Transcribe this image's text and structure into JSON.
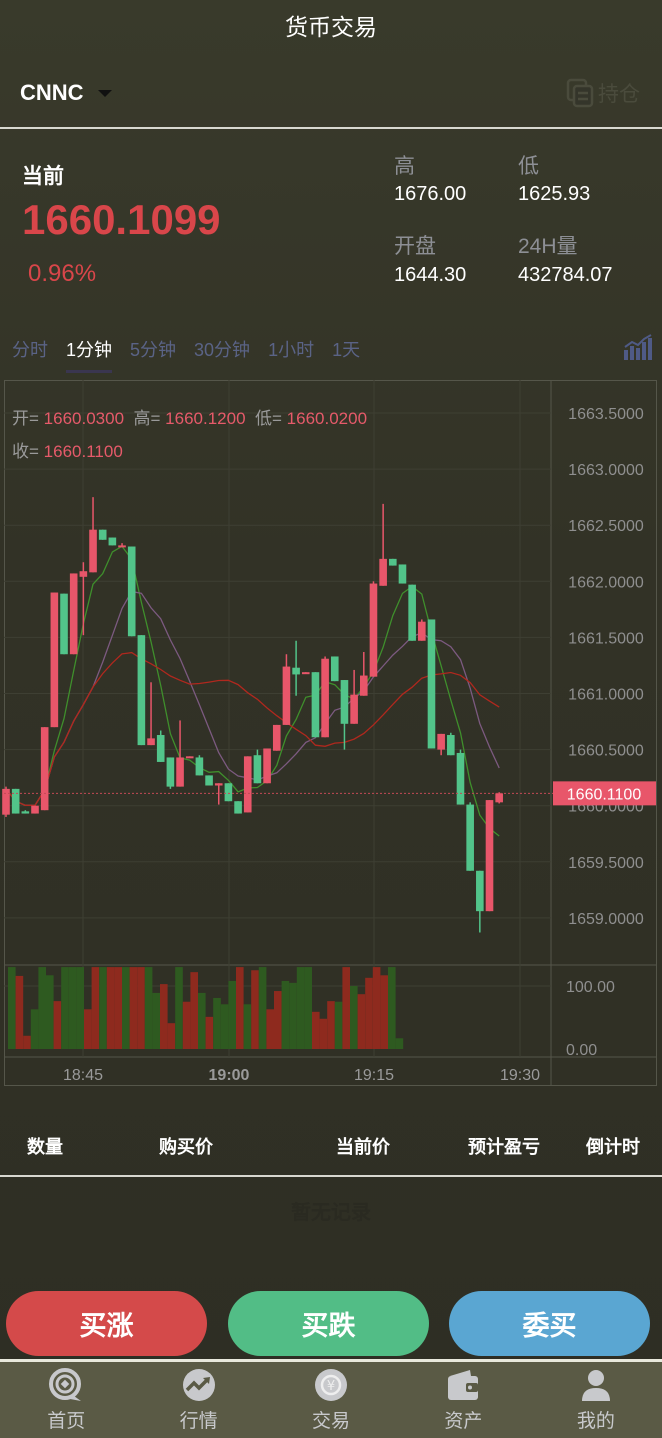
{
  "header": {
    "title": "货币交易",
    "symbol": "CNNC",
    "hold_label": "持仓"
  },
  "quote": {
    "current_label": "当前",
    "price": "1660.1099",
    "change_pct": "0.96%",
    "high_label": "高",
    "high": "1676.00",
    "low_label": "低",
    "low": "1625.93",
    "open_label": "开盘",
    "open": "1644.30",
    "vol_label": "24H量",
    "vol": "432784.07"
  },
  "tabs": [
    {
      "label": "分时"
    },
    {
      "label": "1分钟",
      "active": true
    },
    {
      "label": "5分钟"
    },
    {
      "label": "30分钟"
    },
    {
      "label": "1小时"
    },
    {
      "label": "1天"
    }
  ],
  "ohlc_info": {
    "open_label": "开=",
    "open": "1660.0300",
    "high_label": "高=",
    "high": "1660.1200",
    "low_label": "低=",
    "low": "1660.0200",
    "close_label": "收=",
    "close": "1660.1100"
  },
  "colors": {
    "up": "#e8566a",
    "down": "#52c48a",
    "vol_up": "#8e2a1e",
    "vol_down": "#2e5a20",
    "ma5": "#3f8f2c",
    "ma10": "#7c5a80",
    "ma20": "#b0281e",
    "buy_up": "#d44a4a",
    "buy_down": "#52bd86",
    "entrust": "#5aa6d2"
  },
  "chart_data": {
    "type": "candlestick",
    "price_ticks": [
      "1663.5000",
      "1663.0000",
      "1662.5000",
      "1662.0000",
      "1661.5000",
      "1661.0000",
      "1660.5000",
      "1660.0000",
      "1659.5000",
      "1659.0000"
    ],
    "ylim": [
      1658.8,
      1663.8
    ],
    "current_price_label": "1660.1100",
    "current_price": 1660.11,
    "volume_ticks": [
      "100.00",
      "0.00"
    ],
    "time_ticks": [
      "18:45",
      "19:00",
      "19:15",
      "19:30"
    ],
    "candles": [
      [
        1659.92,
        1660.17,
        1659.9,
        1660.15
      ],
      [
        1660.15,
        1660.15,
        1659.93,
        1659.93
      ],
      [
        1659.95,
        1659.96,
        1659.93,
        1659.93
      ],
      [
        1659.93,
        1660.0,
        1659.93,
        1660.0
      ],
      [
        1659.96,
        1660.7,
        1659.96,
        1660.7
      ],
      [
        1660.7,
        1661.9,
        1660.7,
        1661.9
      ],
      [
        1661.89,
        1661.89,
        1661.35,
        1661.35
      ],
      [
        1661.35,
        1662.07,
        1661.35,
        1662.07
      ],
      [
        1662.04,
        1662.17,
        1661.52,
        1662.09
      ],
      [
        1662.08,
        1662.75,
        1662.08,
        1662.46
      ],
      [
        1662.46,
        1662.46,
        1662.37,
        1662.37
      ],
      [
        1662.39,
        1662.39,
        1662.32,
        1662.32
      ],
      [
        1662.31,
        1662.34,
        1662.31,
        1662.32
      ],
      [
        1662.31,
        1662.31,
        1661.51,
        1661.51
      ],
      [
        1661.52,
        1661.52,
        1660.54,
        1660.54
      ],
      [
        1660.54,
        1661.1,
        1660.54,
        1660.6
      ],
      [
        1660.63,
        1660.67,
        1660.39,
        1660.39
      ],
      [
        1660.43,
        1660.43,
        1660.15,
        1660.17
      ],
      [
        1660.17,
        1660.76,
        1660.17,
        1660.43
      ],
      [
        1660.43,
        1660.44,
        1660.43,
        1660.44
      ],
      [
        1660.43,
        1660.45,
        1660.27,
        1660.27
      ],
      [
        1660.27,
        1660.27,
        1660.18,
        1660.18
      ],
      [
        1660.18,
        1660.2,
        1660.01,
        1660.2
      ],
      [
        1660.2,
        1660.2,
        1660.04,
        1660.04
      ],
      [
        1660.04,
        1660.04,
        1659.93,
        1659.93
      ],
      [
        1659.94,
        1660.44,
        1659.94,
        1660.44
      ],
      [
        1660.45,
        1660.5,
        1660.2,
        1660.2
      ],
      [
        1660.2,
        1660.51,
        1660.2,
        1660.51
      ],
      [
        1660.49,
        1660.72,
        1660.49,
        1660.72
      ],
      [
        1660.72,
        1661.35,
        1660.72,
        1661.24
      ],
      [
        1661.23,
        1661.47,
        1660.98,
        1661.17
      ],
      [
        1661.18,
        1661.19,
        1661.18,
        1661.19
      ],
      [
        1661.19,
        1661.19,
        1660.61,
        1660.61
      ],
      [
        1660.61,
        1661.33,
        1660.61,
        1661.31
      ],
      [
        1661.33,
        1661.33,
        1661.11,
        1661.11
      ],
      [
        1661.12,
        1661.12,
        1660.5,
        1660.73
      ],
      [
        1660.73,
        1661.21,
        1660.73,
        1660.99
      ],
      [
        1660.98,
        1661.37,
        1660.98,
        1661.16
      ],
      [
        1661.15,
        1662.0,
        1661.15,
        1661.98
      ],
      [
        1661.96,
        1662.69,
        1661.96,
        1662.2
      ],
      [
        1662.2,
        1662.2,
        1662.14,
        1662.14
      ],
      [
        1662.15,
        1662.15,
        1661.98,
        1661.98
      ],
      [
        1661.97,
        1661.97,
        1661.47,
        1661.47
      ],
      [
        1661.47,
        1661.66,
        1661.47,
        1661.64
      ],
      [
        1661.66,
        1661.66,
        1660.51,
        1660.51
      ],
      [
        1660.5,
        1660.64,
        1660.45,
        1660.64
      ],
      [
        1660.63,
        1660.65,
        1660.45,
        1660.45
      ],
      [
        1660.47,
        1660.5,
        1660.01,
        1660.01
      ],
      [
        1660.01,
        1660.03,
        1659.42,
        1659.42
      ],
      [
        1659.42,
        1659.42,
        1658.87,
        1659.06
      ],
      [
        1659.06,
        1660.05,
        1659.06,
        1660.05
      ],
      [
        1660.03,
        1660.12,
        1660.02,
        1660.11
      ]
    ],
    "volumes": [
      [
        130,
        "down"
      ],
      [
        116,
        "up"
      ],
      [
        21,
        "up"
      ],
      [
        63,
        "down"
      ],
      [
        130,
        "down"
      ],
      [
        117,
        "down"
      ],
      [
        76,
        "up"
      ],
      [
        130,
        "down"
      ],
      [
        130,
        "down"
      ],
      [
        130,
        "down"
      ],
      [
        63,
        "up"
      ],
      [
        130,
        "up"
      ],
      [
        130,
        "down"
      ],
      [
        130,
        "up"
      ],
      [
        130,
        "up"
      ],
      [
        130,
        "down"
      ],
      [
        130,
        "up"
      ],
      [
        130,
        "up"
      ],
      [
        130,
        "down"
      ],
      [
        89,
        "down"
      ],
      [
        103,
        "up"
      ],
      [
        41,
        "up"
      ],
      [
        130,
        "down"
      ],
      [
        75,
        "up"
      ],
      [
        122,
        "up"
      ],
      [
        89,
        "down"
      ],
      [
        51,
        "up"
      ],
      [
        81,
        "down"
      ],
      [
        71,
        "down"
      ],
      [
        108,
        "down"
      ],
      [
        130,
        "up"
      ],
      [
        71,
        "down"
      ],
      [
        125,
        "up"
      ],
      [
        130,
        "down"
      ],
      [
        63,
        "up"
      ],
      [
        92,
        "up"
      ],
      [
        108,
        "down"
      ],
      [
        105,
        "down"
      ],
      [
        130,
        "down"
      ],
      [
        130,
        "down"
      ],
      [
        59,
        "up"
      ],
      [
        48,
        "up"
      ],
      [
        76,
        "up"
      ],
      [
        75,
        "down"
      ],
      [
        130,
        "up"
      ],
      [
        100,
        "down"
      ],
      [
        87,
        "up"
      ],
      [
        113,
        "up"
      ],
      [
        130,
        "up"
      ],
      [
        117,
        "up"
      ],
      [
        130,
        "down"
      ],
      [
        17,
        "down"
      ]
    ]
  },
  "positions_table": {
    "columns": [
      "数量",
      "购买价",
      "当前价",
      "预计盈亏",
      "倒计时"
    ],
    "empty_text": "暂无记录"
  },
  "actions": {
    "buy_up": "买涨",
    "buy_down": "买跌",
    "entrust": "委买"
  },
  "nav": [
    {
      "label": "首页",
      "icon": "home-coin-icon"
    },
    {
      "label": "行情",
      "icon": "market-trend-icon"
    },
    {
      "label": "交易",
      "icon": "exchange-yuan-icon"
    },
    {
      "label": "资产",
      "icon": "wallet-icon"
    },
    {
      "label": "我的",
      "icon": "user-icon"
    }
  ]
}
